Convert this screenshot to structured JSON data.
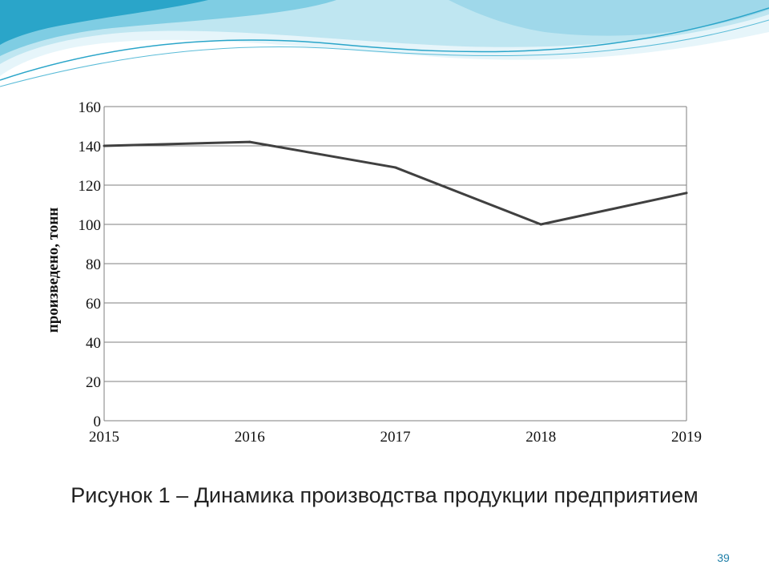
{
  "theme": {
    "wave_colors": [
      "#2aa5c9",
      "#7fcde3",
      "#bfe6f1",
      "#e6f5fa"
    ],
    "line_color": "#404040",
    "grid_color": "#7f7f7f",
    "page_number_color": "#1f7fa8"
  },
  "caption": "Рисунок 1 – Динамика производства продукции предприятием",
  "page_number": "39",
  "chart_data": {
    "type": "line",
    "title": "",
    "xlabel": "",
    "ylabel": "произведено, тонн",
    "categories": [
      "2015",
      "2016",
      "2017",
      "2018",
      "2019"
    ],
    "series": [
      {
        "values": [
          140,
          142,
          129,
          100,
          116
        ]
      }
    ],
    "ylim": [
      0,
      160
    ],
    "yticks": [
      0,
      20,
      40,
      60,
      80,
      100,
      120,
      140,
      160
    ],
    "grid": true,
    "legend": "none"
  }
}
